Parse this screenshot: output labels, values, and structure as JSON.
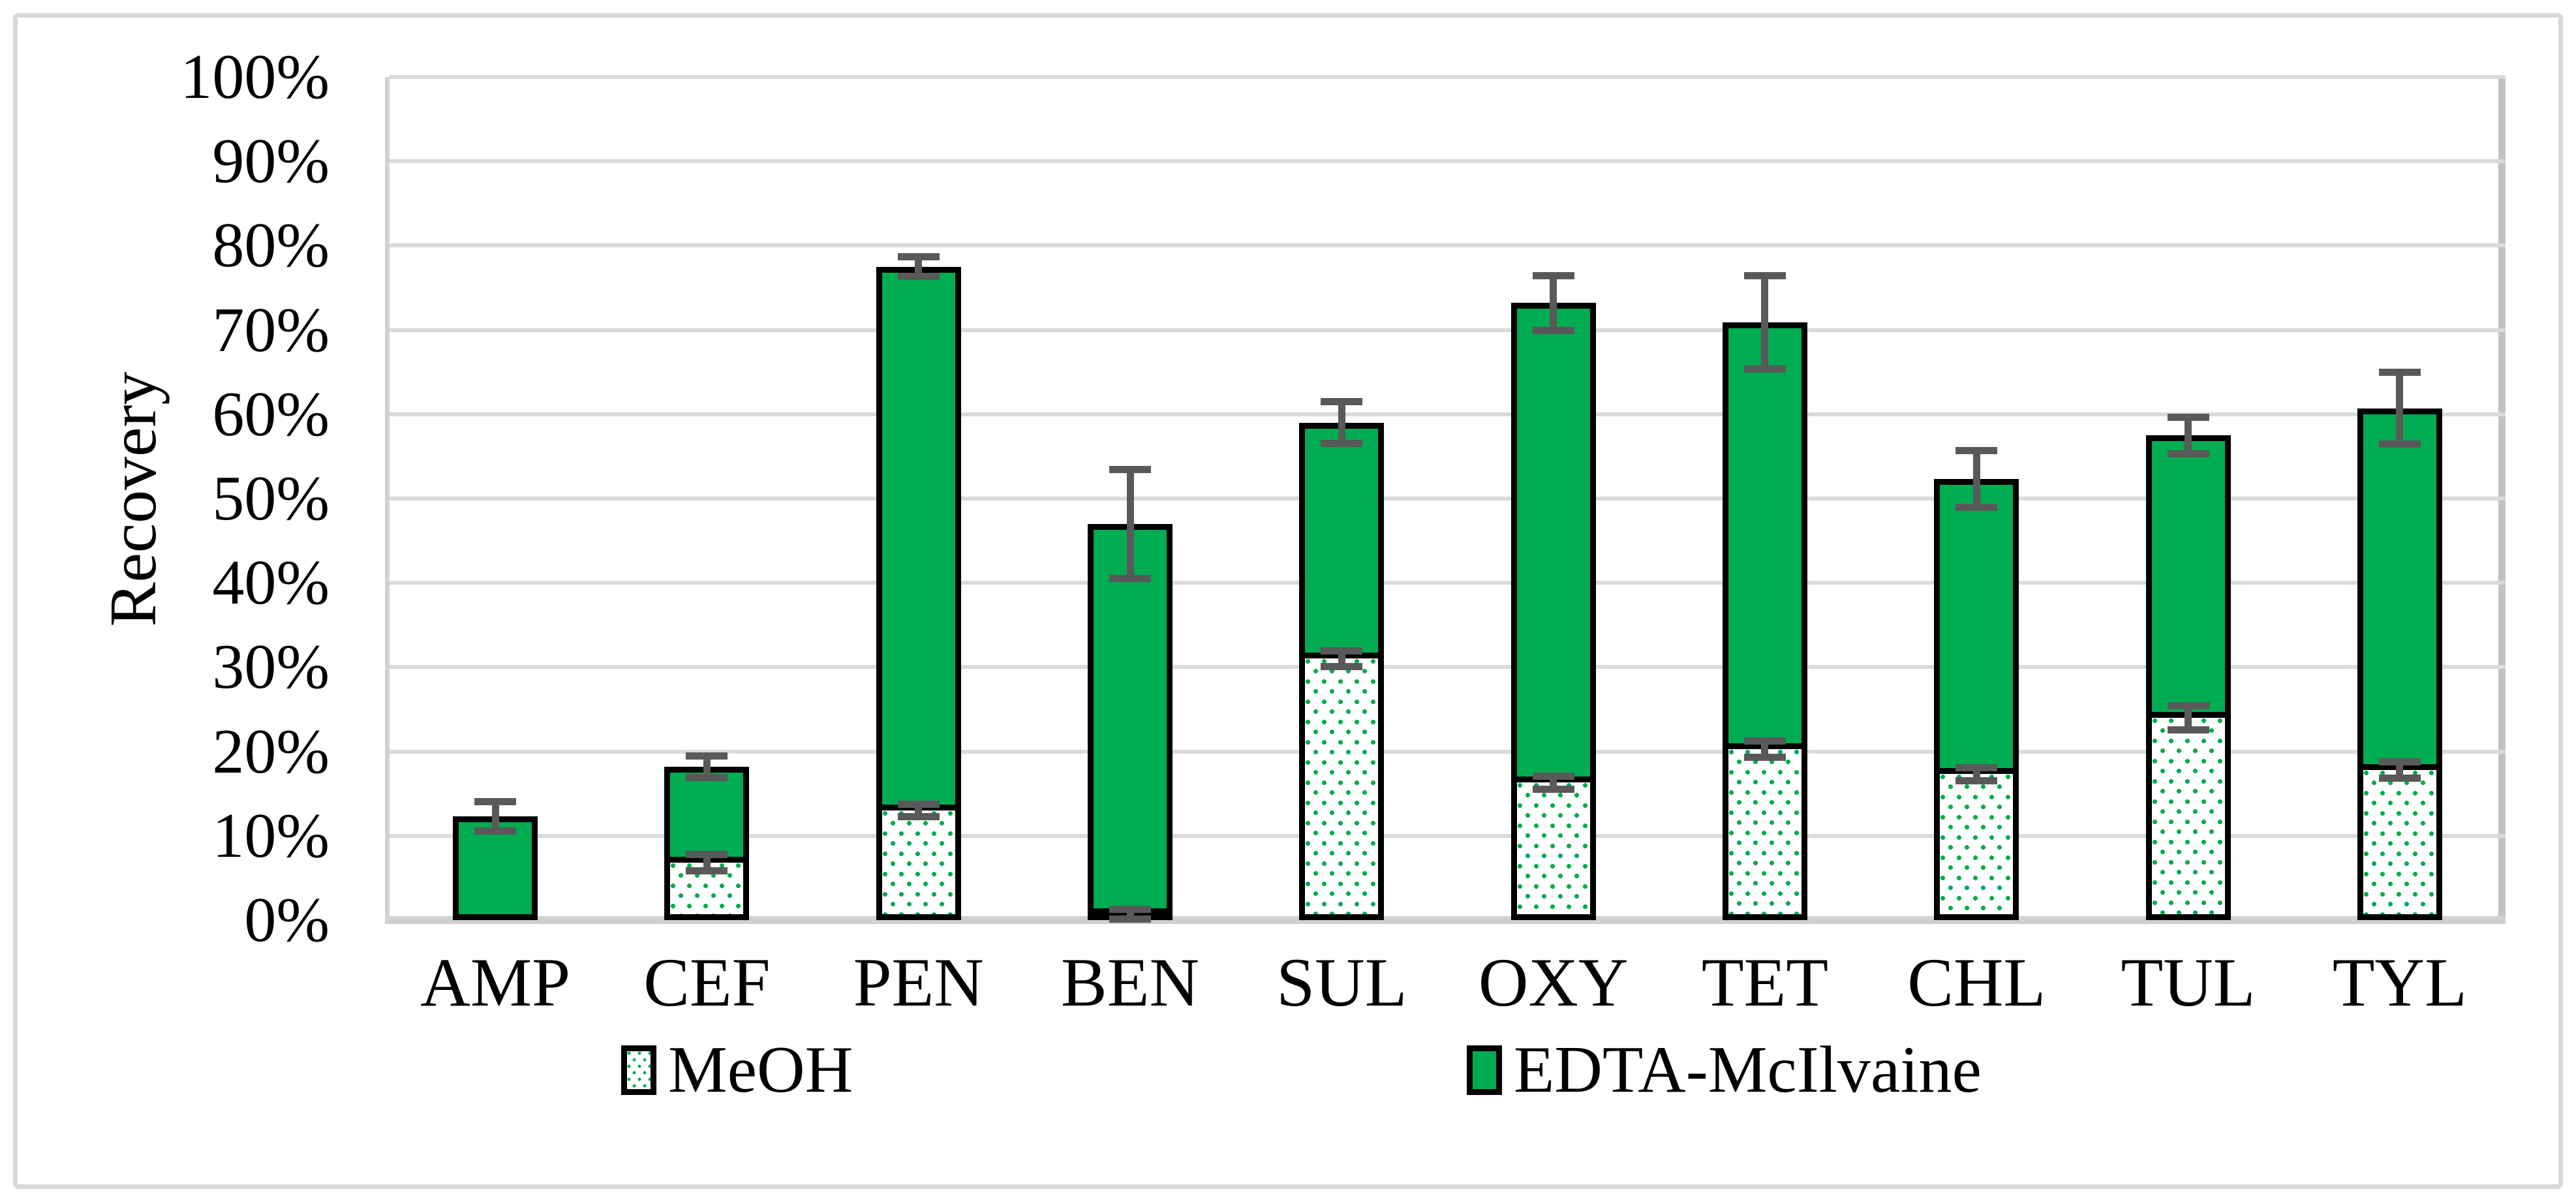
{
  "figure": {
    "background": "#FFFFFF",
    "border_color": "#D9D9D9"
  },
  "y_axis": {
    "title": "Recovery",
    "tick_labels": [
      "0%",
      "10%",
      "20%",
      "30%",
      "40%",
      "50%",
      "60%",
      "70%",
      "80%",
      "90%",
      "100%"
    ],
    "min": 0,
    "max": 100
  },
  "x_axis": {
    "labels": [
      "AMP",
      "CEF",
      "PEN",
      "BEN",
      "SUL",
      "OXY",
      "TET",
      "CHL",
      "TUL",
      "TYL"
    ]
  },
  "legend": {
    "items": [
      {
        "label": "MeOH",
        "swatch": "dotted-green-on-white"
      },
      {
        "label": "EDTA-McIlvaine",
        "swatch": "solid-green"
      }
    ]
  },
  "colors": {
    "series_green": "#00AC52",
    "bar_outline": "#000000",
    "error_bar": "#595959",
    "gridline": "#DADADA",
    "axis_line": "#CFCFCF"
  },
  "chart_data": {
    "type": "bar",
    "stacked": true,
    "title": "",
    "xlabel": "",
    "ylabel": "Recovery",
    "ylim": [
      0,
      100
    ],
    "y_tick_step": 10,
    "grid": true,
    "legend_position": "bottom",
    "categories": [
      "AMP",
      "CEF",
      "PEN",
      "BEN",
      "SUL",
      "OXY",
      "TET",
      "CHL",
      "TUL",
      "TYL"
    ],
    "series": [
      {
        "name": "MeOH",
        "style": "dotted",
        "values": [
          0,
          6.8,
          13.0,
          0.7,
          31.0,
          16.3,
          20.3,
          17.3,
          24.0,
          17.8
        ],
        "error": [
          null,
          1.0,
          0.8,
          0.6,
          1.0,
          0.8,
          1.0,
          0.8,
          1.5,
          1.0
        ]
      },
      {
        "name": "EDTA-McIlvaine",
        "style": "solid",
        "values": [
          12.3,
          11.4,
          64.5,
          46.3,
          28.0,
          56.9,
          50.6,
          35.0,
          33.5,
          42.9
        ]
      }
    ],
    "stack_totals": [
      12.3,
      18.2,
      77.5,
      47.0,
      59.0,
      73.2,
      70.9,
      52.3,
      57.5,
      60.7
    ],
    "stack_total_error": [
      1.8,
      1.3,
      1.2,
      6.5,
      2.5,
      3.3,
      5.6,
      3.4,
      2.2,
      4.3
    ]
  }
}
